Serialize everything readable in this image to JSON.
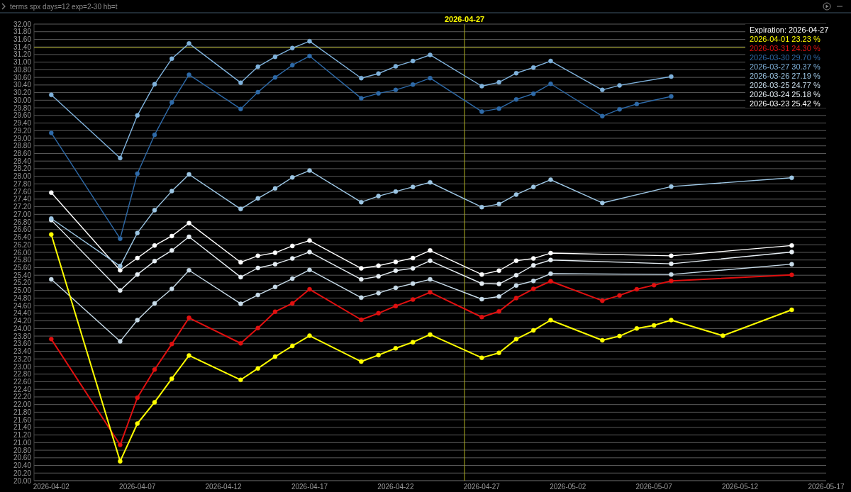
{
  "chart_data": {
    "type": "line",
    "title": "terms spx days=12 exp=2-30 hb=t",
    "legend_title": "Expiration: 2026-04-27",
    "legend": "top right",
    "grid": "y",
    "marker": "circle",
    "line_style": "solid",
    "xlim": [
      "2026-04-01",
      "2026-05-17"
    ],
    "xticks": [
      "2026-04-02",
      "2026-04-07",
      "2026-04-12",
      "2026-04-17",
      "2026-04-22",
      "2026-04-27",
      "2026-05-02",
      "2026-05-07",
      "2026-05-12",
      "2026-05-17"
    ],
    "ylim": [
      20,
      32
    ],
    "yticks": [
      {
        "value": 20,
        "label": "20.00"
      },
      {
        "value": 20.2,
        "label": "20.20"
      },
      {
        "value": 20.4,
        "label": "20.40"
      },
      {
        "value": 20.6,
        "label": "20.60"
      },
      {
        "value": 20.8,
        "label": "20.80"
      },
      {
        "value": 21,
        "label": "21.00"
      },
      {
        "value": 21.2,
        "label": "21.20"
      },
      {
        "value": 21.4,
        "label": "21.40"
      },
      {
        "value": 21.6,
        "label": "21.60"
      },
      {
        "value": 21.8,
        "label": "21.80"
      },
      {
        "value": 22,
        "label": "22.00"
      },
      {
        "value": 22.2,
        "label": "22.20"
      },
      {
        "value": 22.4,
        "label": "22.40"
      },
      {
        "value": 22.6,
        "label": "22.60"
      },
      {
        "value": 22.8,
        "label": "22.80"
      },
      {
        "value": 23,
        "label": "23.00"
      },
      {
        "value": 23.2,
        "label": "23.20"
      },
      {
        "value": 23.4,
        "label": "23.40"
      },
      {
        "value": 23.6,
        "label": "23.60"
      },
      {
        "value": 23.8,
        "label": "23.80"
      },
      {
        "value": 24,
        "label": "24.00"
      },
      {
        "value": 24.2,
        "label": "24.20"
      },
      {
        "value": 24.4,
        "label": "24.40"
      },
      {
        "value": 24.6,
        "label": "24.60"
      },
      {
        "value": 24.8,
        "label": "24.80"
      },
      {
        "value": 25,
        "label": "25.00"
      },
      {
        "value": 25.2,
        "label": "25.20"
      },
      {
        "value": 25.4,
        "label": "25.40"
      },
      {
        "value": 25.6,
        "label": "25.60"
      },
      {
        "value": 25.8,
        "label": "25.80"
      },
      {
        "value": 26,
        "label": "26.00"
      },
      {
        "value": 26.2,
        "label": "26.20"
      },
      {
        "value": 26.4,
        "label": "26.40"
      },
      {
        "value": 26.6,
        "label": "26.60"
      },
      {
        "value": 26.8,
        "label": "26.80"
      },
      {
        "value": 27,
        "label": "27.00"
      },
      {
        "value": 27.2,
        "label": "27.20"
      },
      {
        "value": 27.4,
        "label": "27.40"
      },
      {
        "value": 27.6,
        "label": "27.60"
      },
      {
        "value": 27.8,
        "label": "27.80"
      },
      {
        "value": 28,
        "label": "28.00"
      },
      {
        "value": 28.2,
        "label": "28.20"
      },
      {
        "value": 28.4,
        "label": "28.40"
      },
      {
        "value": 28.6,
        "label": "28.60"
      },
      {
        "value": 28.8,
        "label": "28.80"
      },
      {
        "value": 29,
        "label": "29.00"
      },
      {
        "value": 29.2,
        "label": "29.20"
      },
      {
        "value": 29.4,
        "label": "29.40"
      },
      {
        "value": 29.6,
        "label": "29.60"
      },
      {
        "value": 29.8,
        "label": "29.80"
      },
      {
        "value": 30,
        "label": "30.00"
      },
      {
        "value": 30.2,
        "label": "30.20"
      },
      {
        "value": 30.4,
        "label": "30.40"
      },
      {
        "value": 30.6,
        "label": "30.60"
      },
      {
        "value": 30.8,
        "label": "30.80"
      },
      {
        "value": 31,
        "label": "31.00"
      },
      {
        "value": 31.2,
        "label": "31.20"
      },
      {
        "value": 31.4,
        "label": "31.40"
      },
      {
        "value": 31.6,
        "label": "31.60"
      },
      {
        "value": 31.8,
        "label": "31.80"
      },
      {
        "value": 32,
        "label": "32.00"
      }
    ],
    "ref_lines": [
      {
        "axis": "x",
        "value": "2026-04-26",
        "label": "2026-04-27",
        "color": "#b0b020"
      },
      {
        "axis": "y",
        "value": 31.38,
        "color": "#9a9a1a"
      }
    ],
    "series": [
      {
        "name": "2026-04-01 23.23 %",
        "color": "#ffff00",
        "x": [
          "2026-04-02",
          "2026-04-06",
          "2026-04-07",
          "2026-04-08",
          "2026-04-09",
          "2026-04-10",
          "2026-04-13",
          "2026-04-14",
          "2026-04-15",
          "2026-04-16",
          "2026-04-17",
          "2026-04-20",
          "2026-04-21",
          "2026-04-22",
          "2026-04-23",
          "2026-04-24",
          "2026-04-27",
          "2026-04-28",
          "2026-04-29",
          "2026-04-30",
          "2026-05-01",
          "2026-05-04",
          "2026-05-05",
          "2026-05-06",
          "2026-05-07",
          "2026-05-08",
          "2026-05-11",
          "2026-05-15"
        ],
        "values": [
          26.47,
          20.51,
          21.5,
          22.06,
          22.68,
          23.29,
          22.65,
          22.95,
          23.26,
          23.54,
          23.81,
          23.13,
          23.3,
          23.48,
          23.64,
          23.84,
          23.23,
          23.36,
          23.72,
          23.95,
          24.22,
          23.69,
          23.8,
          24.0,
          24.08,
          24.22,
          23.81,
          24.49
        ]
      },
      {
        "name": "2026-03-31 24.30 %",
        "color": "#e01010",
        "x": [
          "2026-04-02",
          "2026-04-06",
          "2026-04-07",
          "2026-04-08",
          "2026-04-09",
          "2026-04-10",
          "2026-04-13",
          "2026-04-14",
          "2026-04-15",
          "2026-04-16",
          "2026-04-17",
          "2026-04-20",
          "2026-04-21",
          "2026-04-22",
          "2026-04-23",
          "2026-04-24",
          "2026-04-27",
          "2026-04-28",
          "2026-04-29",
          "2026-04-30",
          "2026-05-01",
          "2026-05-04",
          "2026-05-05",
          "2026-05-06",
          "2026-05-07",
          "2026-05-08",
          "2026-05-15"
        ],
        "values": [
          23.72,
          20.94,
          22.18,
          22.92,
          23.59,
          24.28,
          23.61,
          24.01,
          24.44,
          24.66,
          25.03,
          24.23,
          24.4,
          24.59,
          24.76,
          24.95,
          24.3,
          24.45,
          24.8,
          25.04,
          25.24,
          24.73,
          24.87,
          25.03,
          25.14,
          25.25,
          25.41
        ]
      },
      {
        "name": "2026-03-30 29.70 %",
        "color": "#2e6aa8",
        "x": [
          "2026-04-02",
          "2026-04-06",
          "2026-04-07",
          "2026-04-08",
          "2026-04-09",
          "2026-04-10",
          "2026-04-13",
          "2026-04-14",
          "2026-04-15",
          "2026-04-16",
          "2026-04-17",
          "2026-04-20",
          "2026-04-21",
          "2026-04-22",
          "2026-04-23",
          "2026-04-24",
          "2026-04-27",
          "2026-04-28",
          "2026-04-29",
          "2026-04-30",
          "2026-05-01",
          "2026-05-04",
          "2026-05-05",
          "2026-05-06",
          "2026-05-08"
        ],
        "values": [
          29.14,
          26.36,
          28.07,
          29.09,
          29.94,
          30.67,
          29.77,
          30.21,
          30.6,
          30.92,
          31.16,
          30.05,
          30.18,
          30.27,
          30.41,
          30.58,
          29.7,
          29.78,
          30.02,
          30.17,
          30.43,
          29.58,
          29.76,
          29.9,
          30.1
        ]
      },
      {
        "name": "2026-03-27 30.37 %",
        "color": "#7fb2dc",
        "x": [
          "2026-04-02",
          "2026-04-06",
          "2026-04-07",
          "2026-04-08",
          "2026-04-09",
          "2026-04-10",
          "2026-04-13",
          "2026-04-14",
          "2026-04-15",
          "2026-04-16",
          "2026-04-17",
          "2026-04-20",
          "2026-04-21",
          "2026-04-22",
          "2026-04-23",
          "2026-04-24",
          "2026-04-27",
          "2026-04-28",
          "2026-04-29",
          "2026-04-30",
          "2026-05-01",
          "2026-05-04",
          "2026-05-05",
          "2026-05-08"
        ],
        "values": [
          30.14,
          28.48,
          29.6,
          30.42,
          31.09,
          31.49,
          30.46,
          30.88,
          31.14,
          31.37,
          31.55,
          30.58,
          30.7,
          30.89,
          31.03,
          31.19,
          30.37,
          30.47,
          30.71,
          30.86,
          31.03,
          30.27,
          30.39,
          30.62
        ]
      },
      {
        "name": "2026-03-26 27.19 %",
        "color": "#9cc6e4",
        "x": [
          "2026-04-02",
          "2026-04-06",
          "2026-04-07",
          "2026-04-08",
          "2026-04-09",
          "2026-04-10",
          "2026-04-13",
          "2026-04-14",
          "2026-04-15",
          "2026-04-16",
          "2026-04-17",
          "2026-04-20",
          "2026-04-21",
          "2026-04-22",
          "2026-04-23",
          "2026-04-24",
          "2026-04-27",
          "2026-04-28",
          "2026-04-29",
          "2026-04-30",
          "2026-05-01",
          "2026-05-04",
          "2026-05-08",
          "2026-05-15"
        ],
        "values": [
          26.89,
          25.64,
          26.51,
          27.11,
          27.61,
          28.05,
          27.14,
          27.42,
          27.68,
          27.97,
          28.15,
          27.32,
          27.48,
          27.6,
          27.72,
          27.84,
          27.19,
          27.27,
          27.52,
          27.72,
          27.91,
          27.3,
          27.73,
          27.96
        ]
      },
      {
        "name": "2026-03-25 24.77 %",
        "color": "#c8dcea",
        "x": [
          "2026-04-02",
          "2026-04-06",
          "2026-04-07",
          "2026-04-08",
          "2026-04-09",
          "2026-04-10",
          "2026-04-13",
          "2026-04-14",
          "2026-04-15",
          "2026-04-16",
          "2026-04-17",
          "2026-04-20",
          "2026-04-21",
          "2026-04-22",
          "2026-04-23",
          "2026-04-24",
          "2026-04-27",
          "2026-04-28",
          "2026-04-29",
          "2026-04-30",
          "2026-05-01",
          "2026-05-08",
          "2026-05-15"
        ],
        "values": [
          25.29,
          23.66,
          24.22,
          24.66,
          25.04,
          25.53,
          24.65,
          24.88,
          25.09,
          25.31,
          25.54,
          24.81,
          24.93,
          25.07,
          25.18,
          25.29,
          24.77,
          24.84,
          25.13,
          25.25,
          25.44,
          25.42,
          25.69
        ]
      },
      {
        "name": "2026-03-24 25.18 %",
        "color": "#e6eef4",
        "x": [
          "2026-04-02",
          "2026-04-06",
          "2026-04-07",
          "2026-04-08",
          "2026-04-09",
          "2026-04-10",
          "2026-04-13",
          "2026-04-14",
          "2026-04-15",
          "2026-04-16",
          "2026-04-17",
          "2026-04-20",
          "2026-04-21",
          "2026-04-22",
          "2026-04-23",
          "2026-04-24",
          "2026-04-27",
          "2026-04-28",
          "2026-04-29",
          "2026-04-30",
          "2026-05-01",
          "2026-05-08",
          "2026-05-15"
        ],
        "values": [
          26.85,
          25.0,
          25.42,
          25.77,
          26.05,
          26.41,
          25.35,
          25.59,
          25.69,
          25.84,
          26.01,
          25.29,
          25.37,
          25.52,
          25.58,
          25.78,
          25.18,
          25.17,
          25.4,
          25.66,
          25.8,
          25.7,
          26.01
        ]
      },
      {
        "name": "2026-03-23 25.42 %",
        "color": "#ffffff",
        "x": [
          "2026-04-02",
          "2026-04-06",
          "2026-04-07",
          "2026-04-08",
          "2026-04-09",
          "2026-04-10",
          "2026-04-13",
          "2026-04-14",
          "2026-04-15",
          "2026-04-16",
          "2026-04-17",
          "2026-04-20",
          "2026-04-21",
          "2026-04-22",
          "2026-04-23",
          "2026-04-24",
          "2026-04-27",
          "2026-04-28",
          "2026-04-29",
          "2026-04-30",
          "2026-05-01",
          "2026-05-08",
          "2026-05-15"
        ],
        "values": [
          27.57,
          25.53,
          25.85,
          26.18,
          26.43,
          26.77,
          25.74,
          25.91,
          25.99,
          26.17,
          26.31,
          25.58,
          25.65,
          25.75,
          25.85,
          26.05,
          25.42,
          25.52,
          25.78,
          25.84,
          25.98,
          25.91,
          26.18
        ]
      }
    ]
  }
}
